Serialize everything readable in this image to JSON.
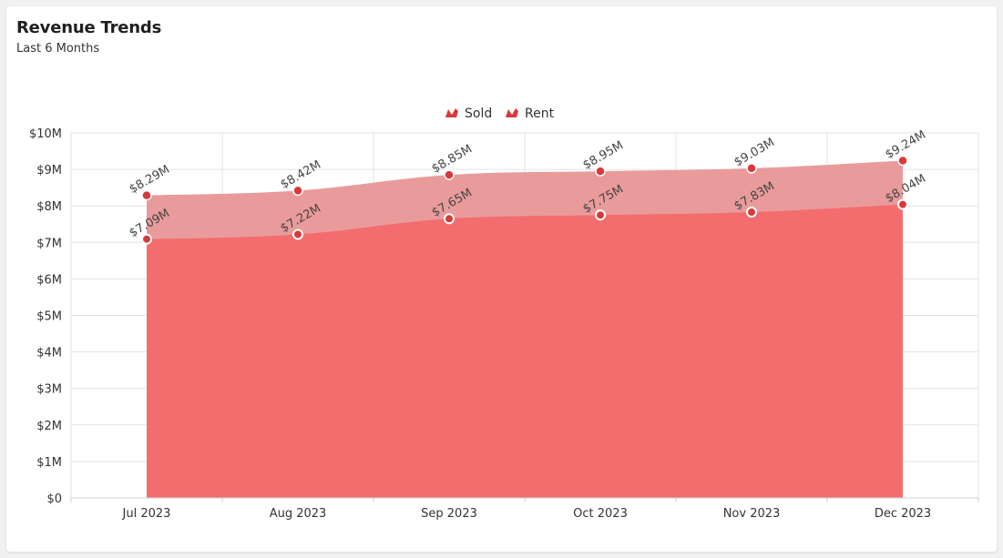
{
  "card": {
    "title": "Revenue Trends",
    "subtitle": "Last 6 Months"
  },
  "chart_data": {
    "type": "area",
    "categories": [
      "Jul 2023",
      "Aug 2023",
      "Sep 2023",
      "Oct 2023",
      "Nov 2023",
      "Dec 2023"
    ],
    "series": [
      {
        "name": "Sold",
        "values": [
          8.29,
          8.42,
          8.85,
          8.95,
          9.03,
          9.24
        ],
        "labels": [
          "$8.29M",
          "$8.42M",
          "$8.85M",
          "$8.95M",
          "$9.03M",
          "$9.24M"
        ],
        "color": "#e99b9b",
        "marker": "#d63a3a"
      },
      {
        "name": "Rent",
        "values": [
          7.09,
          7.22,
          7.65,
          7.75,
          7.83,
          8.04
        ],
        "labels": [
          "$7.09M",
          "$7.22M",
          "$7.65M",
          "$7.75M",
          "$7.83M",
          "$8.04M"
        ],
        "color": "#f36d6f",
        "marker": "#d63a3a"
      }
    ],
    "y_ticks": [
      "$0",
      "$1M",
      "$2M",
      "$3M",
      "$4M",
      "$5M",
      "$6M",
      "$7M",
      "$8M",
      "$9M",
      "$10M"
    ],
    "ylim": [
      0,
      10
    ],
    "y_unit": "$M",
    "grid": true,
    "legend_position": "top-center"
  }
}
